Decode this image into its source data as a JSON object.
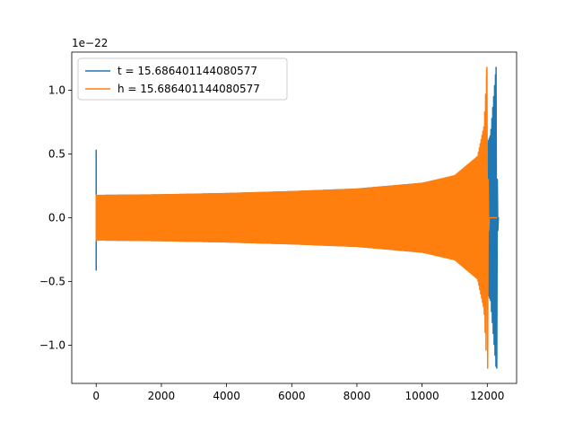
{
  "chart_data": {
    "type": "line",
    "title": "",
    "xlabel": "",
    "ylabel": "",
    "y_offset_label": "1e−22",
    "xlim": [
      -750,
      12900
    ],
    "ylim": [
      -1.3,
      1.3
    ],
    "x_ticks": [
      0,
      2000,
      4000,
      6000,
      8000,
      10000,
      12000
    ],
    "x_tick_labels": [
      "0",
      "2000",
      "4000",
      "6000",
      "8000",
      "10000",
      "12000"
    ],
    "y_ticks": [
      1.0,
      0.5,
      0.0,
      -0.5,
      -1.0
    ],
    "y_tick_labels": [
      "1.0",
      "0.5",
      "0.0",
      "−0.5",
      "−1.0"
    ],
    "grid": false,
    "legend_position": "top-left",
    "series": [
      {
        "name": "t = 15.686401144080577",
        "color": "#1f77b4",
        "x_start": 0,
        "x_merger": 12270,
        "x_end": 12330,
        "initial_spike": [
          0.53,
          -0.41
        ],
        "envelope": [
          [
            0,
            0.175
          ],
          [
            2000,
            0.18
          ],
          [
            4000,
            0.19
          ],
          [
            6000,
            0.205
          ],
          [
            8000,
            0.225
          ],
          [
            10000,
            0.27
          ],
          [
            11000,
            0.32
          ],
          [
            11800,
            0.45
          ],
          [
            12100,
            0.65
          ],
          [
            12270,
            1.18
          ]
        ],
        "ringdown_min": -1.18,
        "post_merger_value": 0.0
      },
      {
        "name": "h = 15.686401144080577",
        "color": "#ff7f0e",
        "x_start": 0,
        "x_merger": 11990,
        "x_end": 12300,
        "initial_spike": [
          0.18,
          -0.18
        ],
        "envelope": [
          [
            0,
            0.175
          ],
          [
            2000,
            0.18
          ],
          [
            4000,
            0.19
          ],
          [
            6000,
            0.205
          ],
          [
            8000,
            0.225
          ],
          [
            10000,
            0.27
          ],
          [
            11000,
            0.33
          ],
          [
            11700,
            0.48
          ],
          [
            11900,
            0.72
          ],
          [
            11990,
            1.18
          ]
        ],
        "ringdown_min": -1.18,
        "post_merger_value": 0.0
      }
    ]
  }
}
